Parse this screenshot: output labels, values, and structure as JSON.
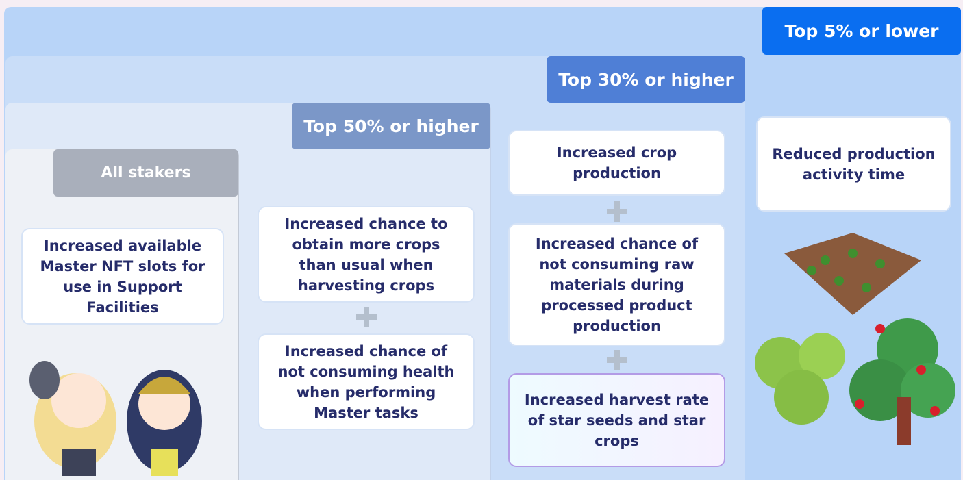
{
  "tiers": [
    {
      "label": "All stakers",
      "benefits": [
        "Increased available Master NFT slots for use in Support Facilities"
      ]
    },
    {
      "label": "Top 50% or higher",
      "benefits": [
        "Increased chance to obtain more crops than usual when harvesting crops",
        "Increased chance of not consuming health when performing Master tasks"
      ]
    },
    {
      "label": "Top 30% or higher",
      "benefits": [
        "Increased crop production",
        "Increased chance of not consuming raw materials during processed product production",
        "Increased harvest rate of star seeds and star crops"
      ]
    },
    {
      "label": "Top 5% or lower",
      "benefits": [
        "Reduced production activity time"
      ]
    }
  ]
}
